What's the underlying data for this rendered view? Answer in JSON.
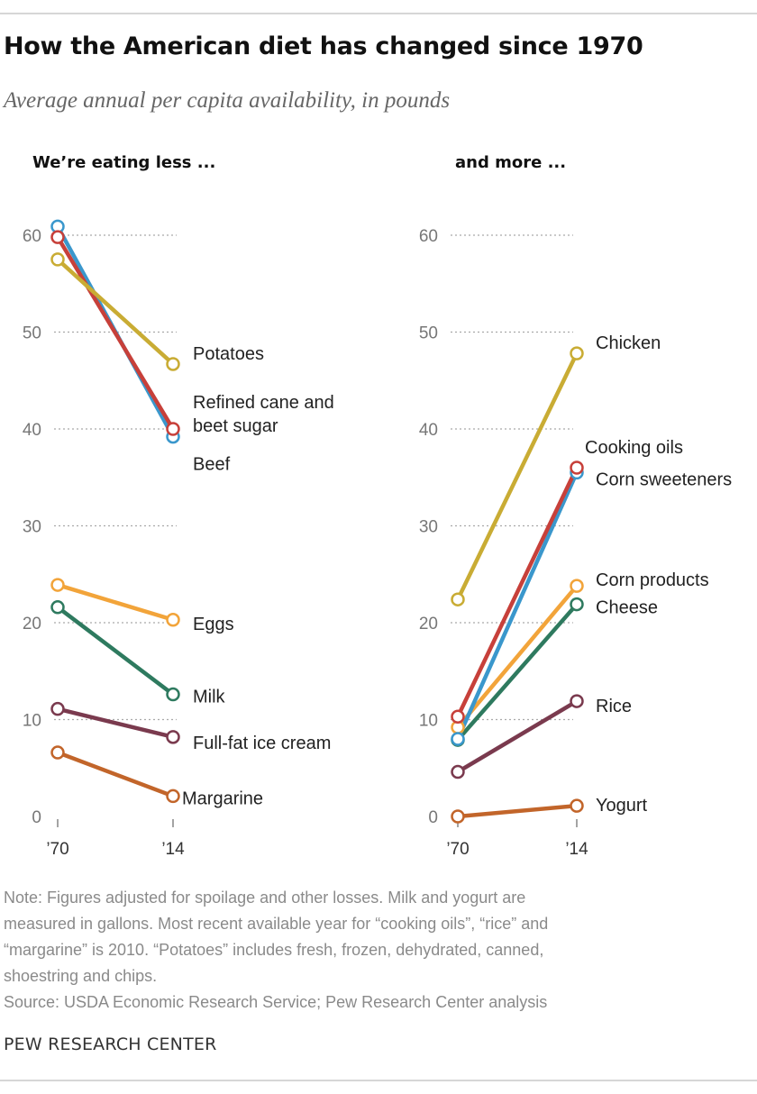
{
  "title": "How the American diet has changed since 1970",
  "subtitle": "Average annual per capita availability, in pounds",
  "notes": [
    "Note: Figures adjusted for spoilage and other losses. Milk and yogurt are",
    "measured in gallons. Most recent available year for “cooking oils”, “rice” and",
    "“margarine” is 2010. “Potatoes” includes fresh, frozen, dehydrated, canned,",
    "shoestring and chips."
  ],
  "source": "Source: USDA Economic Research Service; Pew Research Center analysis",
  "brand": "PEW RESEARCH CENTER",
  "chart_data": [
    {
      "type": "line",
      "title": "We’re eating less  ...",
      "x": [
        "’70",
        "’14"
      ],
      "ylim": [
        0,
        60
      ],
      "yticks": [
        0,
        10,
        20,
        30,
        40,
        50,
        60
      ],
      "grid": true,
      "series": [
        {
          "name": "Potatoes",
          "label_lines": [
            "Potatoes"
          ],
          "values": [
            57.5,
            46.7
          ],
          "color": "#c9ac34"
        },
        {
          "name": "Refined cane and beet sugar",
          "label_lines": [
            "Refined cane and",
            "beet sugar"
          ],
          "values": [
            59.8,
            40.0
          ],
          "color": "#c7403a"
        },
        {
          "name": "Beef",
          "label_lines": [
            "Beef"
          ],
          "values": [
            60.9,
            39.2
          ],
          "color": "#3a97cc"
        },
        {
          "name": "Eggs",
          "label_lines": [
            "Eggs"
          ],
          "values": [
            23.9,
            20.3
          ],
          "color": "#f2a43a"
        },
        {
          "name": "Milk",
          "label_lines": [
            "Milk"
          ],
          "values": [
            21.6,
            12.6
          ],
          "color": "#2e7a5f"
        },
        {
          "name": "Full-fat ice cream",
          "label_lines": [
            "Full-fat ice cream"
          ],
          "values": [
            11.1,
            8.2
          ],
          "color": "#7a3a4e"
        },
        {
          "name": "Margarine",
          "label_lines": [
            "Margarine"
          ],
          "values": [
            6.6,
            2.1
          ],
          "color": "#c2652a"
        }
      ]
    },
    {
      "type": "line",
      "title": "and more ...",
      "x": [
        "’70",
        "’14"
      ],
      "ylim": [
        0,
        60
      ],
      "yticks": [
        0,
        10,
        20,
        30,
        40,
        50,
        60
      ],
      "grid": true,
      "series": [
        {
          "name": "Chicken",
          "label_lines": [
            "Chicken"
          ],
          "values": [
            22.4,
            47.8
          ],
          "color": "#c9ac34"
        },
        {
          "name": "Cooking oils",
          "label_lines": [
            "Cooking oils"
          ],
          "values": [
            10.3,
            36.0
          ],
          "color": "#c7403a"
        },
        {
          "name": "Corn sweeteners",
          "label_lines": [
            "Corn sweeteners"
          ],
          "values": [
            8.0,
            35.5
          ],
          "color": "#3a97cc"
        },
        {
          "name": "Corn products",
          "label_lines": [
            "Corn products"
          ],
          "values": [
            9.2,
            23.8
          ],
          "color": "#f2a43a"
        },
        {
          "name": "Cheese",
          "label_lines": [
            "Cheese"
          ],
          "values": [
            7.9,
            21.9
          ],
          "color": "#2e7a5f"
        },
        {
          "name": "Rice",
          "label_lines": [
            "Rice"
          ],
          "values": [
            4.6,
            11.9
          ],
          "color": "#7a3a4e"
        },
        {
          "name": "Yogurt",
          "label_lines": [
            "Yogurt"
          ],
          "values": [
            0.0,
            1.1
          ],
          "color": "#c2652a"
        }
      ]
    }
  ]
}
